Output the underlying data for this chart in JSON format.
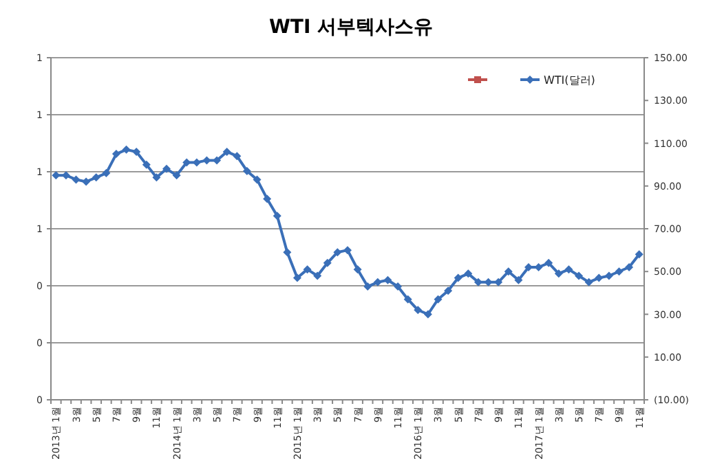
{
  "chart_data": {
    "type": "line",
    "title": "WTI 서부텍사스유",
    "categories": [
      "2013년 1월",
      null,
      "3월",
      null,
      "5월",
      null,
      "7월",
      null,
      "9월",
      null,
      "11월",
      null,
      "2014년 1월",
      null,
      "3월",
      null,
      "5월",
      null,
      "7월",
      null,
      "9월",
      null,
      "11월",
      null,
      "2015년 1월",
      null,
      "3월",
      null,
      "5월",
      null,
      "7월",
      null,
      "9월",
      null,
      "11월",
      null,
      "2016년 1월",
      null,
      "3월",
      null,
      "5월",
      null,
      "7월",
      null,
      "9월",
      null,
      "11월",
      null,
      "2017년 1월",
      null,
      "3월",
      null,
      "5월",
      null,
      "7월",
      null,
      "9월",
      null,
      "11월"
    ],
    "series": [
      {
        "color": "#c0504d",
        "marker": "square",
        "values": [
          null,
          null,
          null,
          null,
          null,
          null,
          null,
          null,
          null,
          null,
          null,
          null,
          null,
          null,
          null,
          null,
          null,
          null,
          null,
          null,
          null,
          null,
          null,
          null,
          null,
          null,
          null,
          null,
          null,
          null,
          null,
          null,
          null,
          null,
          null,
          null,
          null,
          null,
          null,
          null,
          null,
          null,
          null,
          null,
          null,
          null,
          null,
          null,
          null,
          null,
          null,
          null,
          null,
          null,
          null,
          null,
          null,
          null,
          null
        ]
      },
      {
        "name": "WTI(달러)",
        "color": "#3a6fb8",
        "axis": "y2",
        "values": [
          95,
          95,
          93,
          92,
          94,
          96,
          105,
          107,
          106,
          100,
          94,
          98,
          95,
          101,
          101,
          102,
          102,
          106,
          104,
          97,
          93,
          84,
          76,
          59,
          47,
          51,
          48,
          54,
          59,
          60,
          51,
          43,
          45,
          46,
          43,
          37,
          32,
          30,
          37,
          41,
          47,
          49,
          45,
          45,
          45,
          50,
          46,
          52,
          52,
          54,
          49,
          51,
          48,
          45,
          47,
          48,
          50,
          52,
          58
        ]
      }
    ],
    "ylim": [
      0,
      1.2
    ],
    "yticks": [
      0,
      {
        "value": 0.2,
        "label": "0"
      },
      {
        "value": 0.4,
        "label": "0"
      },
      {
        "value": 0.6,
        "label": "1"
      },
      {
        "value": 0.8,
        "label": "1"
      },
      1,
      {
        "value": 1.2,
        "label": "1"
      }
    ],
    "y2lim": [
      -10,
      150
    ],
    "y2ticks": [
      {
        "value": -10,
        "label": "(10.00)"
      },
      {
        "value": 10,
        "label": "10.00"
      },
      {
        "value": 30,
        "label": "30.00"
      },
      {
        "value": 50,
        "label": "50.00"
      },
      {
        "value": 70,
        "label": "70.00"
      },
      {
        "value": 90,
        "label": "90.00"
      },
      {
        "value": 110,
        "label": "110.00"
      },
      {
        "value": 130,
        "label": "130.00"
      },
      {
        "value": 150,
        "label": "150.00"
      }
    ],
    "grid": "y",
    "legend": "top right",
    "marker": "diamond",
    "line_style": "solid"
  }
}
